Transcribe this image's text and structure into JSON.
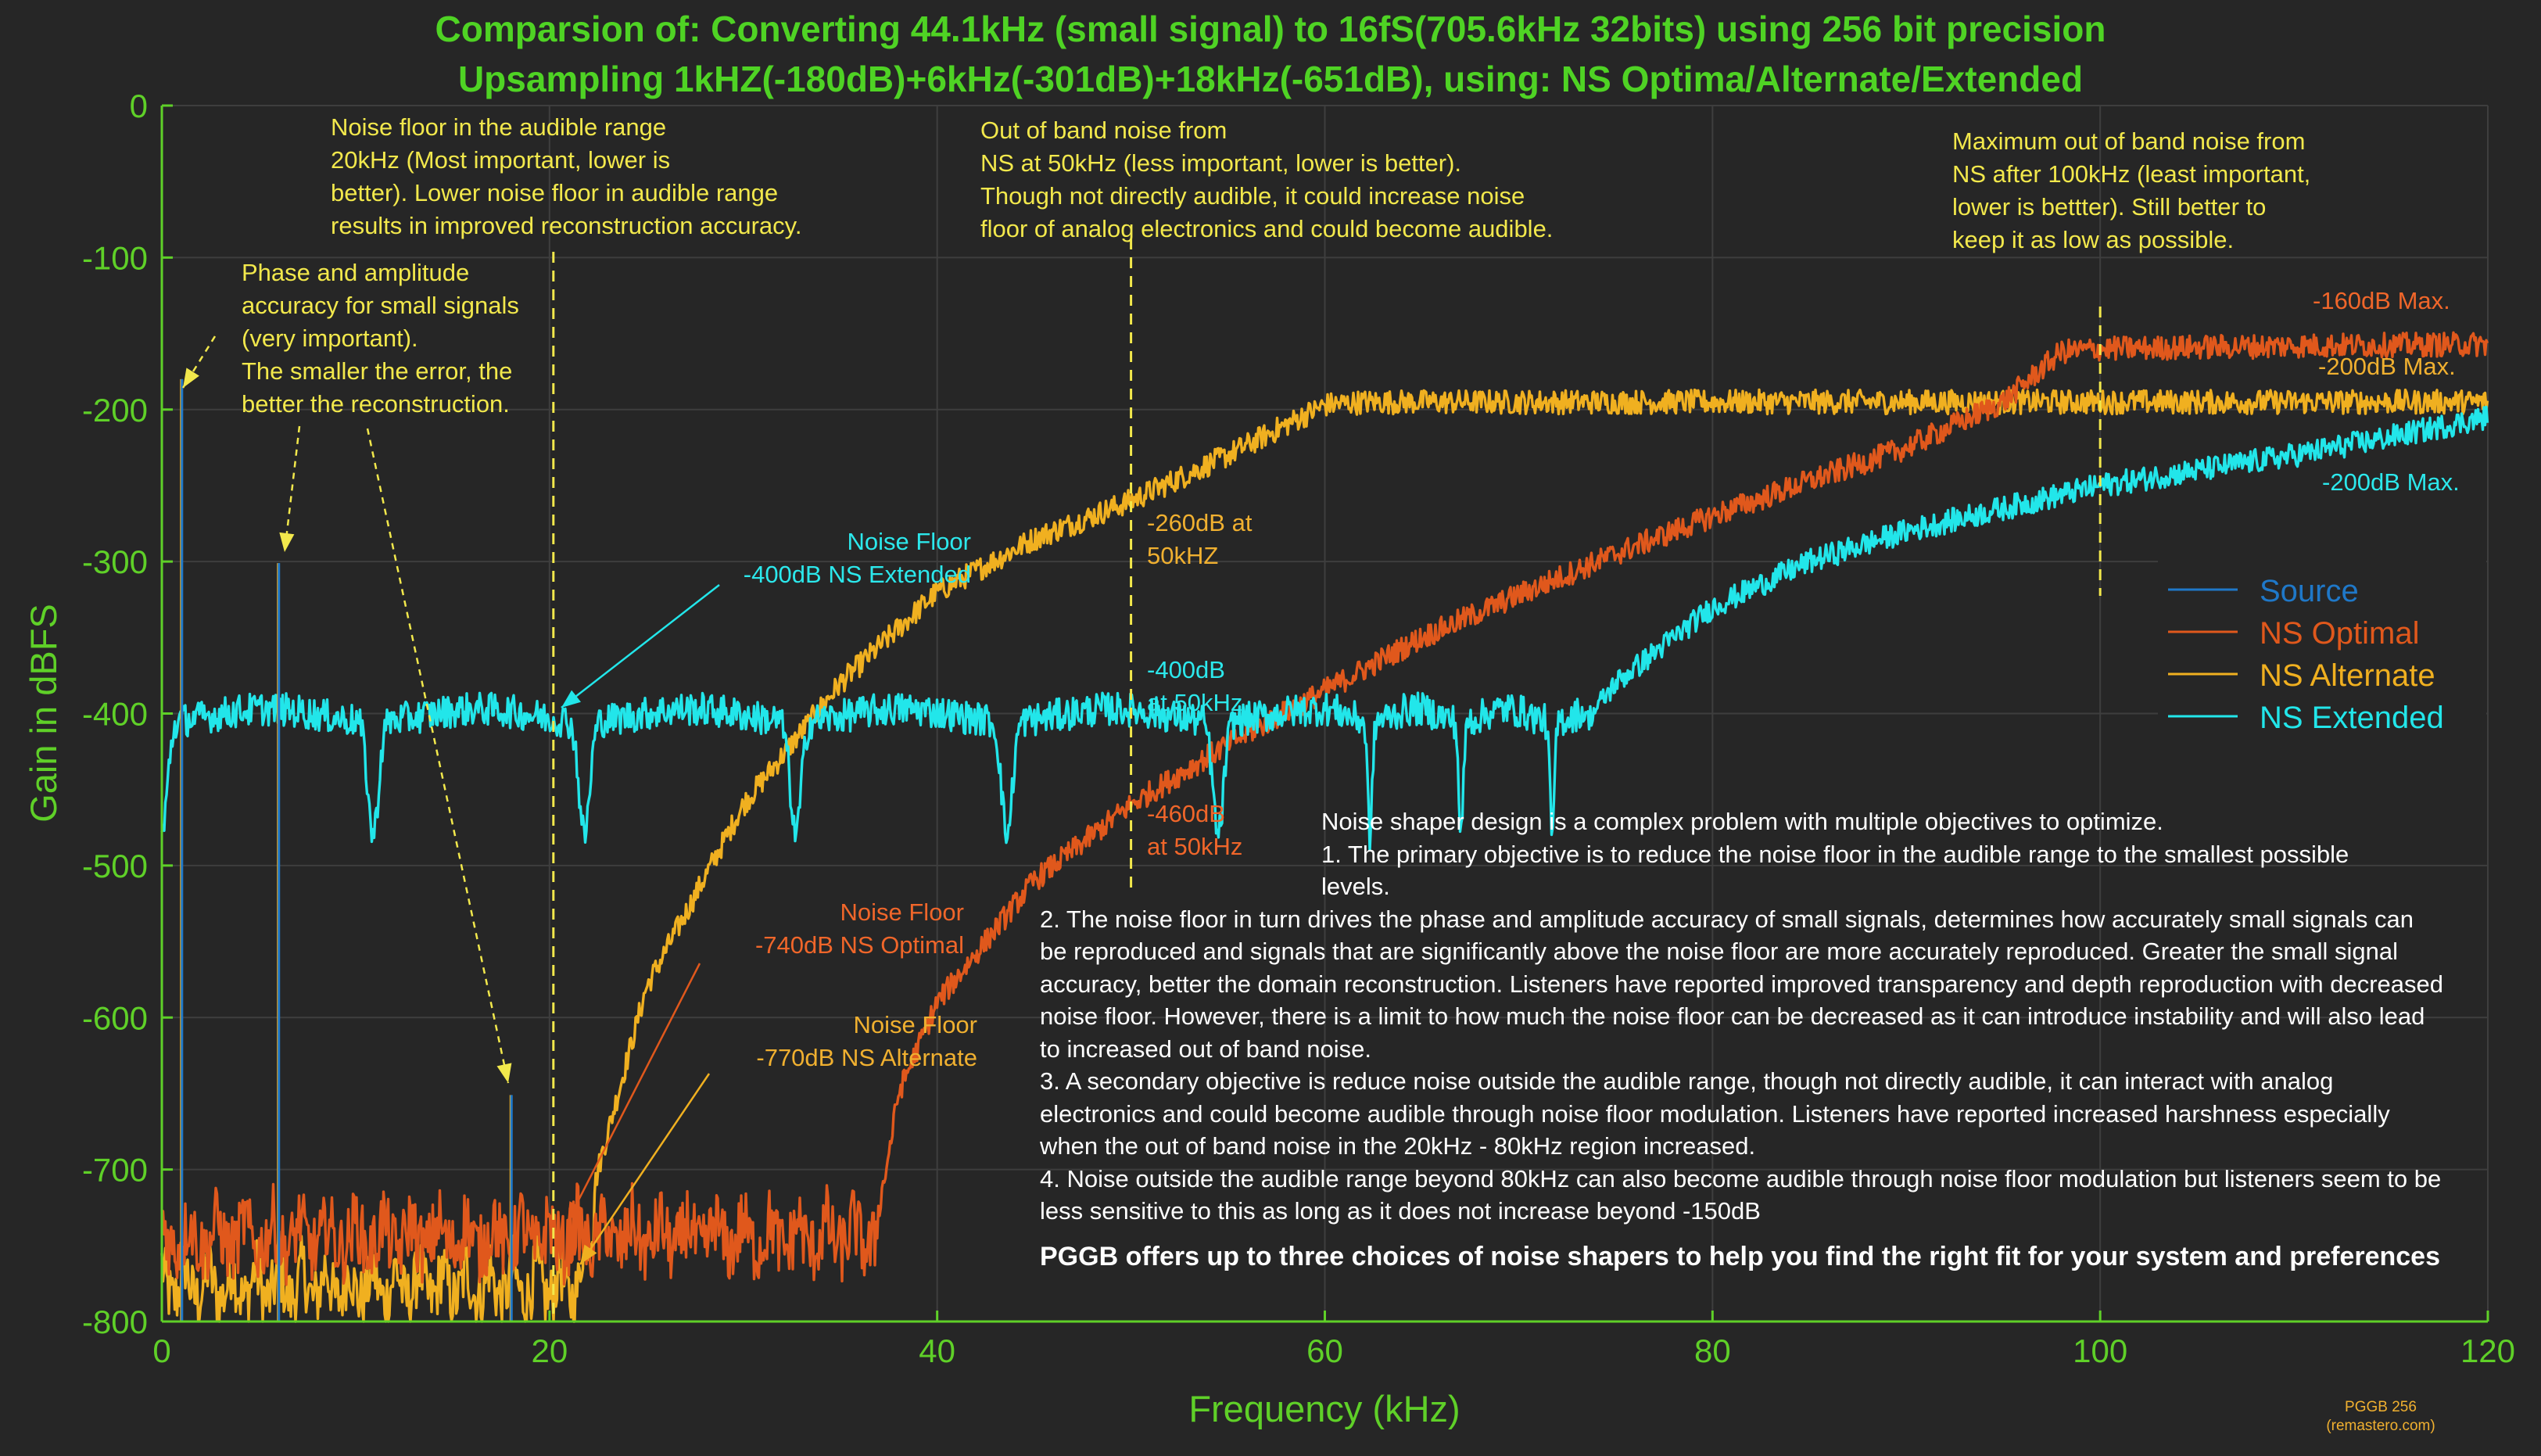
{
  "title_line1": "Comparsion of: Converting 44.1kHz (small signal) to 16fS(705.6kHz 32bits) using 256 bit precision",
  "title_line2": "Upsampling 1kHZ(-180dB)+6kHz(-301dB)+18kHz(-651dB), using: NS Optima/Alternate/Extended",
  "annotations": {
    "audible_floor": "Noise floor in the audible range\n20kHz (Most important, lower is\nbetter). Lower noise floor in audible range\nresults in improved reconstruction accuracy.",
    "out_band_50": "Out of band noise from\nNS at 50kHz (less important, lower is better).\nThough not directly audible, it could increase noise\nfloor of analog electronics and could become audible.",
    "max_out_band": "Maximum out of band noise from\nNS after 100kHz (least important,\nlower is bettter). Still better to\nkeep it as low as possible.",
    "phase_amp": "Phase and amplitude\naccuracy for small signals\n(very important).\nThe smaller the error, the\nbetter the reconstruction.",
    "nf_extended": "Noise Floor\n-400dB NS Extended",
    "nf_optimal": "Noise Floor\n-740dB NS Optimal",
    "nf_alternate": "Noise Floor\n-770dB NS Alternate",
    "alt_50": "-260dB at\n50kHZ",
    "ext_50": "-400dB\nat 50kHz",
    "opt_50": "-460dB\nat 50kHz",
    "opt_max": "-160dB Max.",
    "alt_max": "-200dB Max.",
    "ext_max": "-200dB Max."
  },
  "description": {
    "intro": "Noise shaper design is a complex problem with multiple objectives to optimize.",
    "p1a": "1. The primary objective is to reduce the noise floor in the audible range to the smallest possible",
    "p1b": "levels.",
    "p2": "2. The noise floor in turn drives the phase and amplitude accuracy of small signals, determines how accurately small signals can be reproduced and signals that are significantly above the noise floor are more accurately reproduced. Greater the small signal accuracy, better the domain reconstruction. Listeners have reported improved transparency and depth reproduction with decreased noise floor. However, there is a limit to how much the noise floor can be decreased as it can introduce instability and will also lead to increased out of band noise.",
    "p3": "3. A secondary objective is reduce noise outside the audible range, though not directly audible, it can interact with analog electronics and could become audible through noise floor modulation. Listeners have reported increased harshness especially when the out of band noise in the 20kHz - 80kHz region increased.",
    "p4": "4. Noise outside the audible range beyond 80kHz can also become audible through noise floor modulation but listeners seem to be less sensitive to this as long as it does not increase beyond -150dB",
    "bold": "PGGB offers up to three choices of noise shapers to help you find the right fit for your system and preferences"
  },
  "watermark_line1": "PGGB 256",
  "watermark_line2": "(remastero.com)",
  "colors": {
    "background": "#262626",
    "axis": "#5fd028",
    "grid": "#3e3e3e",
    "source": "#1f78c8",
    "optimal": "#e0581c",
    "alternate": "#f0b020",
    "extended": "#22e6ea",
    "annotation": "#f2e84c"
  },
  "chart_data": {
    "type": "line",
    "xlabel": "Frequency (kHz)",
    "ylabel": "Gain in dBFS",
    "xlim": [
      0,
      120
    ],
    "ylim": [
      -800,
      0
    ],
    "xticks": [
      0,
      20,
      40,
      60,
      80,
      100,
      120
    ],
    "yticks": [
      0,
      -100,
      -200,
      -300,
      -400,
      -500,
      -600,
      -700,
      -800
    ],
    "grid": true,
    "legend_position": "right",
    "markers_kHz": [
      20.2,
      50,
      100
    ],
    "series": [
      {
        "name": "Source",
        "color": "#1f78c8",
        "kind": "tones",
        "tones": [
          {
            "x": 1,
            "y": -180
          },
          {
            "x": 6,
            "y": -301
          },
          {
            "x": 18,
            "y": -651
          }
        ]
      },
      {
        "name": "NS Optimal",
        "color": "#e0581c",
        "kind": "noise",
        "x": [
          0,
          10,
          20,
          30,
          36.8,
          37.5,
          38,
          40,
          45,
          50,
          55,
          60,
          65,
          70,
          75,
          80,
          85,
          90,
          95,
          98,
          100,
          110,
          120
        ],
        "y": [
          -740,
          -740,
          -740,
          -740,
          -740,
          -690,
          -650,
          -590,
          -510,
          -460,
          -420,
          -385,
          -350,
          -322,
          -295,
          -270,
          -247,
          -225,
          -195,
          -162,
          -160,
          -158,
          -157
        ]
      },
      {
        "name": "NS Alternate",
        "color": "#f0b020",
        "kind": "noise",
        "x": [
          0,
          10,
          20,
          21.5,
          22.5,
          25,
          30,
          35,
          40,
          45,
          50,
          55,
          58,
          60,
          62,
          70,
          80,
          90,
          100,
          110,
          120
        ],
        "y": [
          -770,
          -770,
          -770,
          -770,
          -700,
          -580,
          -460,
          -380,
          -320,
          -285,
          -260,
          -230,
          -210,
          -197,
          -195,
          -195,
          -195,
          -195,
          -195,
          -195,
          -195
        ]
      },
      {
        "name": "NS Extended",
        "color": "#22e6ea",
        "kind": "noise",
        "x": [
          0,
          10,
          20,
          30,
          40,
          50,
          60,
          70,
          73.5,
          75,
          80,
          85,
          90,
          95,
          100,
          105,
          110,
          115,
          120
        ],
        "y": [
          -405,
          -405,
          -405,
          -405,
          -405,
          -405,
          -405,
          -405,
          -405,
          -380,
          -330,
          -300,
          -280,
          -265,
          -250,
          -240,
          -230,
          -218,
          -205
        ]
      }
    ]
  }
}
